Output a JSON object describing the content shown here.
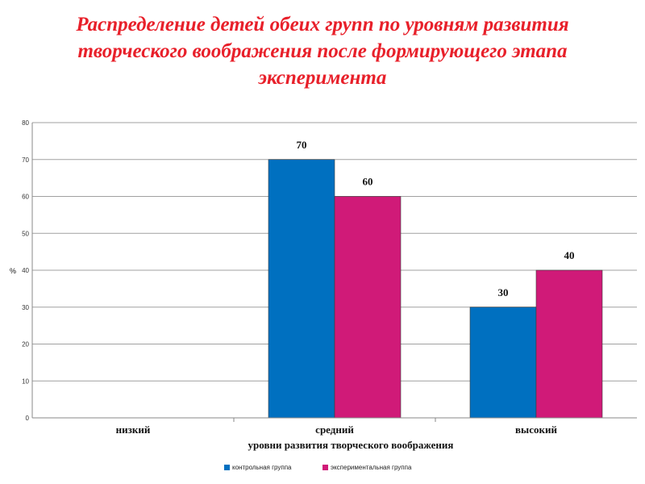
{
  "chart_data": {
    "type": "bar",
    "title": "Распределение детей обеих групп по уровням развития творческого воображения после формирующего этапа эксперимента",
    "title_lines": [
      "Распределение детей обеих групп по уровням развития",
      "творческого воображения после формирующего этапа",
      "эксперимента"
    ],
    "categories": [
      "низкий",
      "средний",
      "высокий"
    ],
    "series": [
      {
        "name": "контрольная группа",
        "color": "#0070c0",
        "values": [
          0,
          70,
          30
        ],
        "labels": [
          "",
          "70",
          "30"
        ]
      },
      {
        "name": "экспериментальная группа",
        "color": "#d01a78",
        "values": [
          0,
          60,
          40
        ],
        "labels": [
          "",
          "60",
          "40"
        ]
      }
    ],
    "xlabel": "уровни развития творческого воображения",
    "ylabel": "%",
    "ylim": [
      0,
      80
    ],
    "yticks": [
      0,
      10,
      20,
      30,
      40,
      50,
      60,
      70,
      80
    ],
    "grid": true,
    "legend_position": "bottom"
  }
}
